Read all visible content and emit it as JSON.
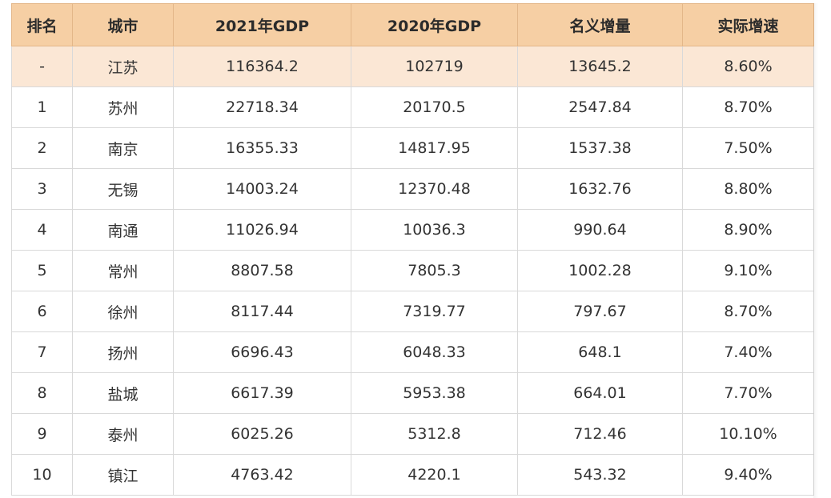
{
  "headers": [
    "排名",
    "城市",
    "2021年GDP",
    "2020年GDP",
    "名义增量",
    "实际增速"
  ],
  "summary_row": [
    "-",
    "江苏",
    "116364.2",
    "102719",
    "13645.2",
    "8.60%"
  ],
  "rows": [
    [
      "1",
      "苏州",
      "22718.34",
      "20170.5",
      "2547.84",
      "8.70%"
    ],
    [
      "2",
      "南京",
      "16355.33",
      "14817.95",
      "1537.38",
      "7.50%"
    ],
    [
      "3",
      "无锡",
      "14003.24",
      "12370.48",
      "1632.76",
      "8.80%"
    ],
    [
      "4",
      "南通",
      "11026.94",
      "10036.3",
      "990.64",
      "8.90%"
    ],
    [
      "5",
      "常州",
      "8807.58",
      "7805.3",
      "1002.28",
      "9.10%"
    ],
    [
      "6",
      "徐州",
      "8117.44",
      "7319.77",
      "797.67",
      "8.70%"
    ],
    [
      "7",
      "扬州",
      "6696.43",
      "6048.33",
      "648.1",
      "7.40%"
    ],
    [
      "8",
      "盐城",
      "6617.39",
      "5953.38",
      "664.01",
      "7.70%"
    ],
    [
      "9",
      "泰州",
      "6025.26",
      "5312.8",
      "712.46",
      "10.10%"
    ],
    [
      "10",
      "镇江",
      "4763.42",
      "4220.1",
      "543.32",
      "9.40%"
    ]
  ],
  "colors": {
    "header_bg": "#f6cfa4",
    "summary_bg": "#fbe7d5",
    "grid": "#d9d9d9"
  }
}
